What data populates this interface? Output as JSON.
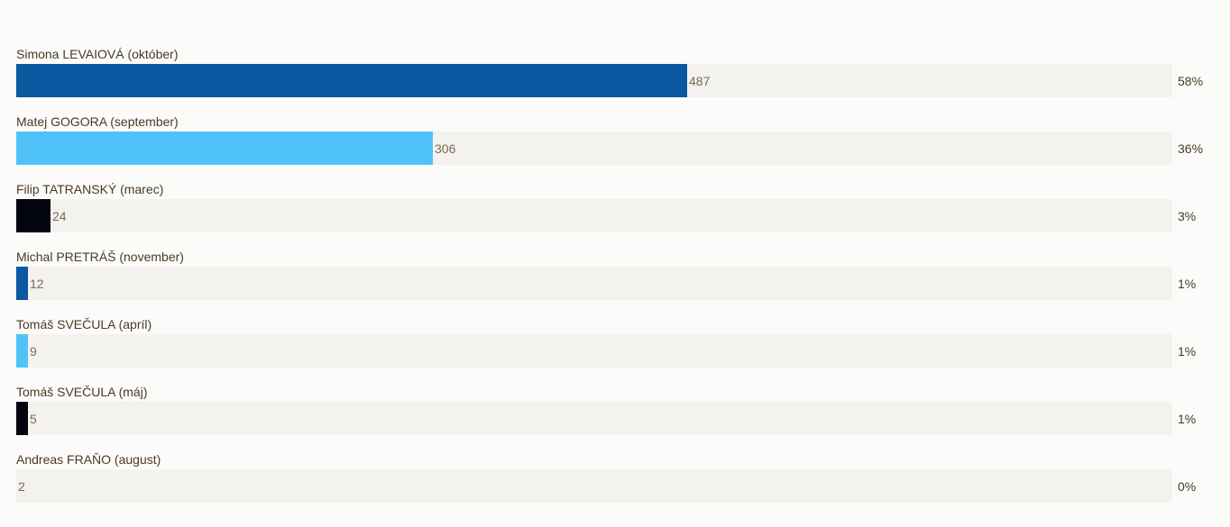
{
  "chart_data": {
    "type": "bar",
    "orientation": "horizontal",
    "categories": [
      "Simona LEVAIOVÁ (október)",
      "Matej GOGORA (september)",
      "Filip TATRANSKÝ (marec)",
      "Michal PRETRÁŠ (november)",
      "Tomáš SVEČULA (apríl)",
      "Tomáš SVEČULA (máj)",
      "Andreas FRAŇO (august)"
    ],
    "values": [
      487,
      306,
      24,
      12,
      9,
      5,
      2
    ],
    "percent_labels": [
      "58%",
      "36%",
      "3%",
      "1%",
      "1%",
      "1%",
      "0%"
    ],
    "percent_values": [
      58,
      36,
      3,
      1,
      1,
      1,
      0
    ],
    "colors": [
      "#0a58a0",
      "#4fc3f7",
      "#02050e",
      "#0a58a0",
      "#4fc3f7",
      "#02050e",
      "#0a58a0"
    ],
    "track_color": "#f3f2ef",
    "title": "",
    "xlabel": "",
    "ylabel": "",
    "grid": false,
    "legend": "none"
  }
}
